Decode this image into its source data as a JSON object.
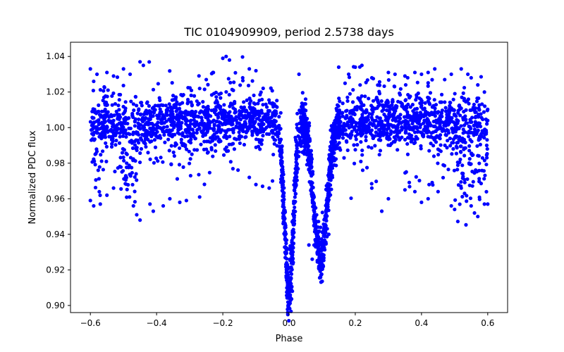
{
  "chart_data": {
    "type": "scatter",
    "title": "TIC 0104909909, period 2.5738 days",
    "xlabel": "Phase",
    "ylabel": "Normalized PDC flux",
    "xlim": [
      -0.66,
      0.66
    ],
    "ylim": [
      0.896,
      1.048
    ],
    "xticks": [
      -0.6,
      -0.4,
      -0.2,
      0.0,
      0.2,
      0.4,
      0.6
    ],
    "xtick_labels": [
      "−0.6",
      "−0.4",
      "−0.2",
      "0.0",
      "0.2",
      "0.4",
      "0.6"
    ],
    "yticks": [
      0.9,
      0.92,
      0.94,
      0.96,
      0.98,
      1.0,
      1.02,
      1.04
    ],
    "ytick_labels": [
      "0.90",
      "0.92",
      "0.94",
      "0.96",
      "0.98",
      "1.00",
      "1.02",
      "1.04"
    ],
    "grid": false,
    "marker_color": "#0000ff",
    "series": [
      {
        "name": "flux",
        "x_range": [
          -0.6,
          0.6
        ],
        "baseline": 1.003,
        "scatter_band": 0.013,
        "primary_eclipse": {
          "center": 0.0,
          "depth": 0.097,
          "half_width": 0.028
        },
        "secondary_eclipse": {
          "center": 0.095,
          "depth": 0.078,
          "half_width": 0.045
        },
        "points": [
          [
            -0.6,
            1.033
          ],
          [
            -0.59,
            1.026
          ],
          [
            -0.58,
            1.03
          ],
          [
            -0.55,
            1.031
          ],
          [
            -0.53,
            1.029
          ],
          [
            -0.6,
            0.959
          ],
          [
            -0.59,
            0.956
          ],
          [
            -0.57,
            0.957
          ],
          [
            -0.55,
            0.962
          ],
          [
            -0.53,
            0.966
          ],
          [
            -0.5,
            1.033
          ],
          [
            -0.48,
            1.03
          ],
          [
            -0.45,
            1.037
          ],
          [
            -0.44,
            1.035
          ],
          [
            -0.47,
            0.956
          ],
          [
            -0.46,
            0.951
          ],
          [
            -0.45,
            0.948
          ],
          [
            -0.42,
            0.957
          ],
          [
            -0.41,
            0.953
          ],
          [
            -0.38,
            0.956
          ],
          [
            -0.36,
            0.96
          ],
          [
            -0.33,
            0.958
          ],
          [
            -0.31,
            0.959
          ],
          [
            -0.27,
            0.961
          ],
          [
            -0.27,
            1.022
          ],
          [
            -0.25,
            1.027
          ],
          [
            -0.23,
            1.031
          ],
          [
            -0.2,
            1.039
          ],
          [
            -0.19,
            1.04
          ],
          [
            -0.18,
            1.038
          ],
          [
            -0.14,
            1.028
          ],
          [
            -0.12,
            1.033
          ],
          [
            -0.1,
            1.032
          ],
          [
            -0.12,
            0.972
          ],
          [
            -0.1,
            0.968
          ],
          [
            -0.08,
            0.967
          ],
          [
            -0.06,
            0.966
          ],
          [
            -0.05,
            0.97
          ],
          [
            -0.01,
            0.929
          ],
          [
            -0.005,
            0.917
          ],
          [
            0.0,
            0.906
          ],
          [
            0.005,
            0.903
          ],
          [
            0.01,
            0.908
          ],
          [
            0.03,
            1.03
          ],
          [
            0.05,
            1.016
          ],
          [
            0.06,
            0.934
          ],
          [
            0.07,
            0.926
          ],
          [
            0.08,
            0.934
          ],
          [
            0.09,
            0.922
          ],
          [
            0.1,
            0.925
          ],
          [
            0.11,
            0.935
          ],
          [
            0.12,
            0.94
          ],
          [
            0.15,
            1.034
          ],
          [
            0.18,
            1.03
          ],
          [
            0.2,
            1.034
          ],
          [
            0.22,
            1.035
          ],
          [
            0.25,
            1.028
          ],
          [
            0.3,
            1.031
          ],
          [
            0.32,
            1.03
          ],
          [
            0.35,
            1.029
          ],
          [
            0.38,
            1.031
          ],
          [
            0.4,
            1.03
          ],
          [
            0.42,
            1.031
          ],
          [
            0.44,
            1.033
          ],
          [
            0.47,
            1.027
          ],
          [
            0.49,
            1.03
          ],
          [
            0.52,
            1.033
          ],
          [
            0.54,
            1.03
          ],
          [
            0.55,
            1.028
          ],
          [
            0.57,
            1.024
          ],
          [
            0.59,
            1.02
          ],
          [
            0.25,
            0.966
          ],
          [
            0.28,
            0.953
          ],
          [
            0.3,
            0.96
          ],
          [
            0.35,
            0.965
          ],
          [
            0.38,
            0.964
          ],
          [
            0.4,
            0.958
          ],
          [
            0.42,
            0.96
          ],
          [
            0.45,
            0.964
          ],
          [
            0.49,
            0.956
          ],
          [
            0.5,
            0.954
          ],
          [
            0.52,
            0.966
          ],
          [
            0.53,
            0.963
          ],
          [
            0.55,
            0.956
          ],
          [
            0.56,
            0.952
          ],
          [
            0.57,
            0.95
          ],
          [
            0.59,
            0.957
          ],
          [
            0.6,
            0.957
          ]
        ]
      }
    ]
  }
}
